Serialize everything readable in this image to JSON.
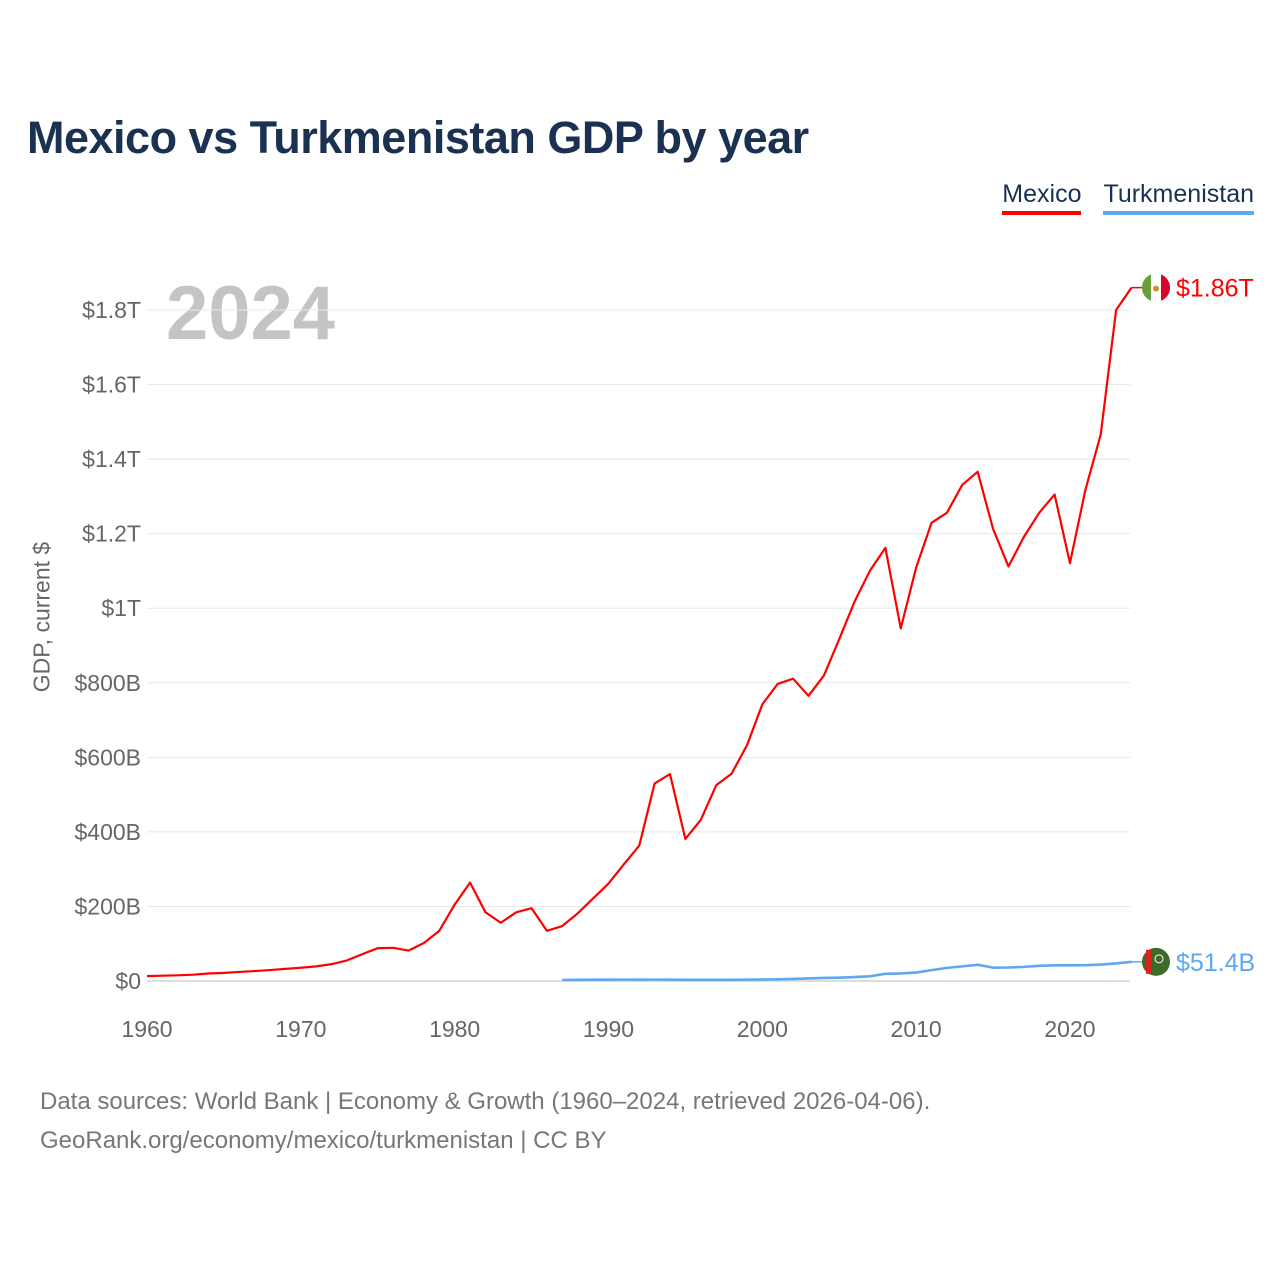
{
  "chart_data": {
    "type": "line",
    "title": "Mexico vs Turkmenistan GDP by year",
    "ylabel": "GDP, current $",
    "xlabel": "",
    "xlim": [
      1960,
      2024
    ],
    "ylim": [
      0,
      1800
    ],
    "y_units": "billions USD",
    "x_ticks": [
      "1960",
      "1970",
      "1980",
      "1990",
      "2000",
      "2010",
      "2020"
    ],
    "y_ticks": [
      {
        "value": 0,
        "label": "$0"
      },
      {
        "value": 200,
        "label": "$200B"
      },
      {
        "value": 400,
        "label": "$400B"
      },
      {
        "value": 600,
        "label": "$600B"
      },
      {
        "value": 800,
        "label": "$800B"
      },
      {
        "value": 1000,
        "label": "$1T"
      },
      {
        "value": 1200,
        "label": "$1.2T"
      },
      {
        "value": 1400,
        "label": "$1.4T"
      },
      {
        "value": 1600,
        "label": "$1.6T"
      },
      {
        "value": 1800,
        "label": "$1.8T"
      }
    ],
    "grid": true,
    "legend_position": "top-right",
    "current_year": "2024",
    "series": [
      {
        "name": "Mexico",
        "color": "#ff0000",
        "end_label": "$1.86T",
        "start_year": 1960,
        "values": [
          13,
          14.2,
          15.2,
          17,
          20.1,
          21.8,
          24.3,
          26.6,
          29.4,
          32.5,
          35.5,
          39.2,
          45.2,
          55.3,
          72,
          88,
          89,
          81.6,
          102,
          134.5,
          205,
          264,
          184.6,
          156.2,
          184.3,
          195.2,
          134.6,
          147.5,
          181.6,
          221.4,
          261.3,
          313.1,
          363.2,
          530,
          555,
          381,
          432,
          525,
          556,
          632,
          742,
          797,
          811,
          765,
          819,
          917,
          1018,
          1101,
          1162,
          946,
          1109,
          1229,
          1256,
          1331,
          1366,
          1213,
          1112,
          1191,
          1256,
          1305,
          1121,
          1317,
          1466,
          1800,
          1860
        ]
      },
      {
        "name": "Turkmenistan",
        "color": "#5fa8f0",
        "end_label": "$51.4B",
        "start_year": 1987,
        "values": [
          3,
          3.3,
          3.4,
          3.6,
          3.7,
          3.6,
          3.7,
          3.6,
          3.2,
          3.1,
          3.2,
          3.3,
          3.5,
          3.8,
          4.4,
          5.5,
          6.9,
          8.1,
          9,
          10.5,
          12.7,
          19.3,
          20.2,
          22.6,
          29.2,
          35.2,
          39.2,
          43.5,
          35.8,
          36.2,
          37.9,
          40.8,
          42,
          42,
          42.5,
          44,
          47,
          51.4
        ]
      }
    ]
  },
  "source_line1": "Data sources: World Bank | Economy & Growth (1960–2024, retrieved 2026-04-06).",
  "source_line2": "GeoRank.org/economy/mexico/turkmenistan | CC BY"
}
